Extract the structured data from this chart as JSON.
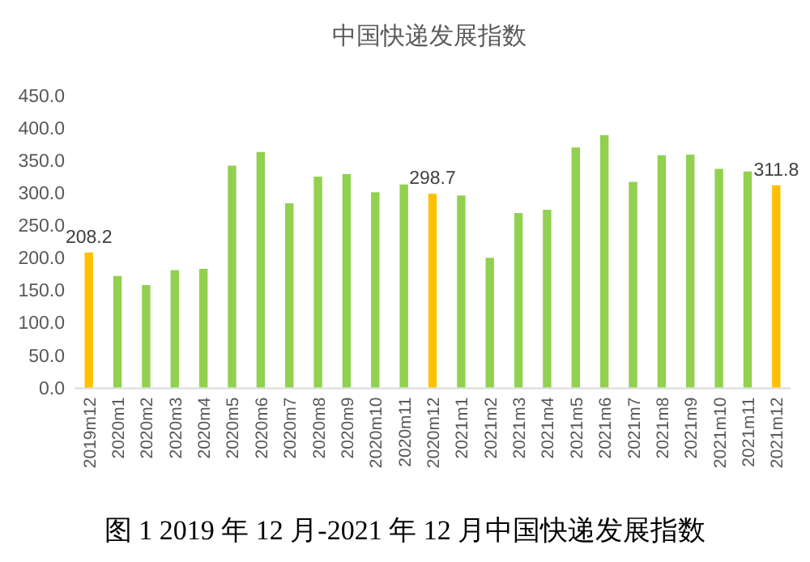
{
  "chart_data": {
    "type": "bar",
    "title": "中国快递发展指数",
    "categories": [
      "2019m12",
      "2020m1",
      "2020m2",
      "2020m3",
      "2020m4",
      "2020m5",
      "2020m6",
      "2020m7",
      "2020m8",
      "2020m9",
      "2020m10",
      "2020m11",
      "2020m12",
      "2021m1",
      "2021m2",
      "2021m3",
      "2021m4",
      "2021m5",
      "2021m6",
      "2021m7",
      "2021m8",
      "2021m9",
      "2021m10",
      "2021m11",
      "2021m12"
    ],
    "values": [
      208.2,
      172,
      158,
      181,
      183,
      342,
      363,
      284,
      325,
      329,
      301,
      313,
      298.7,
      296,
      200,
      269,
      274,
      370,
      389,
      317,
      358,
      359,
      337,
      333,
      311.8
    ],
    "colors": [
      "#ffc000",
      "#92d050",
      "#92d050",
      "#92d050",
      "#92d050",
      "#92d050",
      "#92d050",
      "#92d050",
      "#92d050",
      "#92d050",
      "#92d050",
      "#92d050",
      "#ffc000",
      "#92d050",
      "#92d050",
      "#92d050",
      "#92d050",
      "#92d050",
      "#92d050",
      "#92d050",
      "#92d050",
      "#92d050",
      "#92d050",
      "#92d050",
      "#ffc000"
    ],
    "value_labels": [
      "208.2",
      null,
      null,
      null,
      null,
      null,
      null,
      null,
      null,
      null,
      null,
      null,
      "298.7",
      null,
      null,
      null,
      null,
      null,
      null,
      null,
      null,
      null,
      null,
      null,
      "311.8"
    ],
    "ylim": [
      0,
      450
    ],
    "yticks": [
      {
        "value": 0,
        "label": "0.0"
      },
      {
        "value": 50,
        "label": "50.0"
      },
      {
        "value": 100,
        "label": "100.0"
      },
      {
        "value": 150,
        "label": "150.0"
      },
      {
        "value": 200,
        "label": "200.0"
      },
      {
        "value": 250,
        "label": "250.0"
      },
      {
        "value": 300,
        "label": "300.0"
      },
      {
        "value": 350,
        "label": "350.0"
      },
      {
        "value": 400,
        "label": "400.0"
      },
      {
        "value": 450,
        "label": "450.0"
      }
    ],
    "grid": false,
    "annotations": [
      "图 1 2019 年 12 月-2021 年 12 月中国快递发展指数"
    ]
  }
}
